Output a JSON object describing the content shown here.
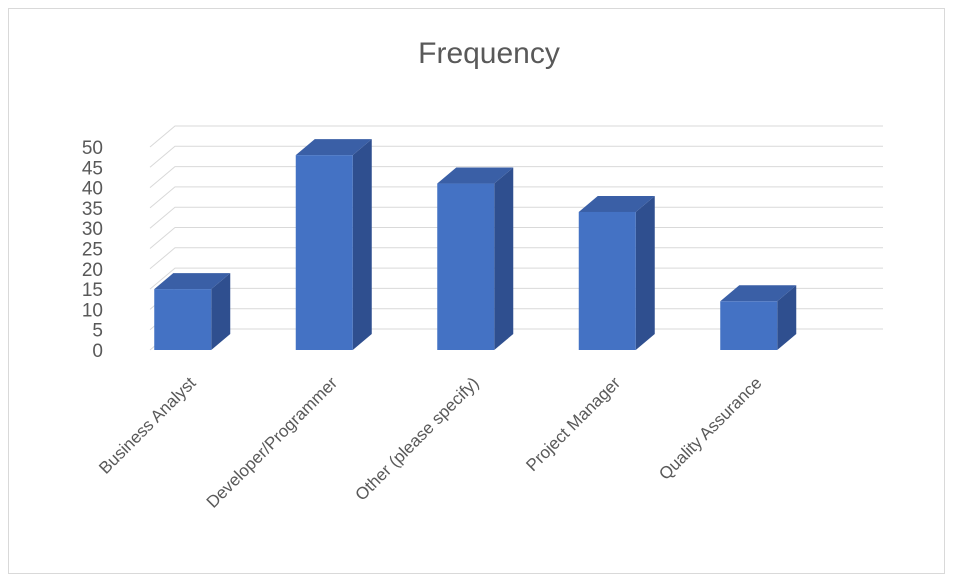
{
  "chart_data": {
    "type": "bar",
    "style": "3d-column",
    "title": "Frequency",
    "xlabel": "",
    "ylabel": "",
    "categories": [
      "Business Analyst",
      "Developer/Programmer",
      "Other (please specify)",
      "Project Manager",
      "Quality Assurance"
    ],
    "values": [
      15,
      48,
      41,
      34,
      12
    ],
    "ylim": [
      0,
      50
    ],
    "yticks": [
      "0",
      "5",
      "10",
      "15",
      "20",
      "25",
      "30",
      "35",
      "40",
      "45",
      "50"
    ],
    "grid": true,
    "legend": "none",
    "colors": {
      "bar_front": "#4472c4",
      "bar_top": "#3a5fa6",
      "bar_side": "#2f4f8f",
      "gridline": "#d9d9d9",
      "text": "#595959"
    }
  }
}
